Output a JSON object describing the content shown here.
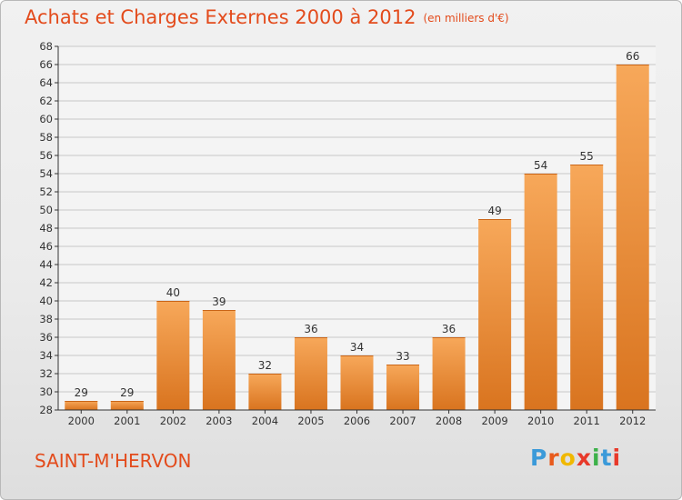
{
  "header": {
    "title": "Achats et Charges Externes 2000 à 2012",
    "unit": "(en milliers d'€)"
  },
  "footer": {
    "commune": "SAINT-M'HERVON",
    "logo_letters": [
      "P",
      "r",
      "o",
      "x",
      "i",
      "t",
      "i"
    ],
    "logo_colors": [
      "#3b9ad9",
      "#e85a1c",
      "#f0b800",
      "#e8392a",
      "#3db14a",
      "#3b9ad9",
      "#e8392a"
    ]
  },
  "colors": {
    "title": "#e34b1c",
    "bar_light": "#f7a85a",
    "bar_dark": "#d9741f",
    "grid": "#c8c8c8",
    "axis": "#333333"
  },
  "chart_data": {
    "type": "bar",
    "title": "Achats et Charges Externes 2000 à 2012",
    "subtitle": "(en milliers d'€)",
    "categories": [
      "2000",
      "2001",
      "2002",
      "2003",
      "2004",
      "2005",
      "2006",
      "2007",
      "2008",
      "2009",
      "2010",
      "2011",
      "2012"
    ],
    "values": [
      29,
      29,
      40,
      39,
      32,
      36,
      34,
      33,
      36,
      49,
      54,
      55,
      66
    ],
    "ylim": [
      28,
      68
    ],
    "yticks": [
      28,
      30,
      32,
      34,
      36,
      38,
      40,
      42,
      44,
      46,
      48,
      50,
      52,
      54,
      56,
      58,
      60,
      62,
      64,
      66,
      68
    ],
    "grid": true,
    "xlabel": "",
    "ylabel": ""
  }
}
